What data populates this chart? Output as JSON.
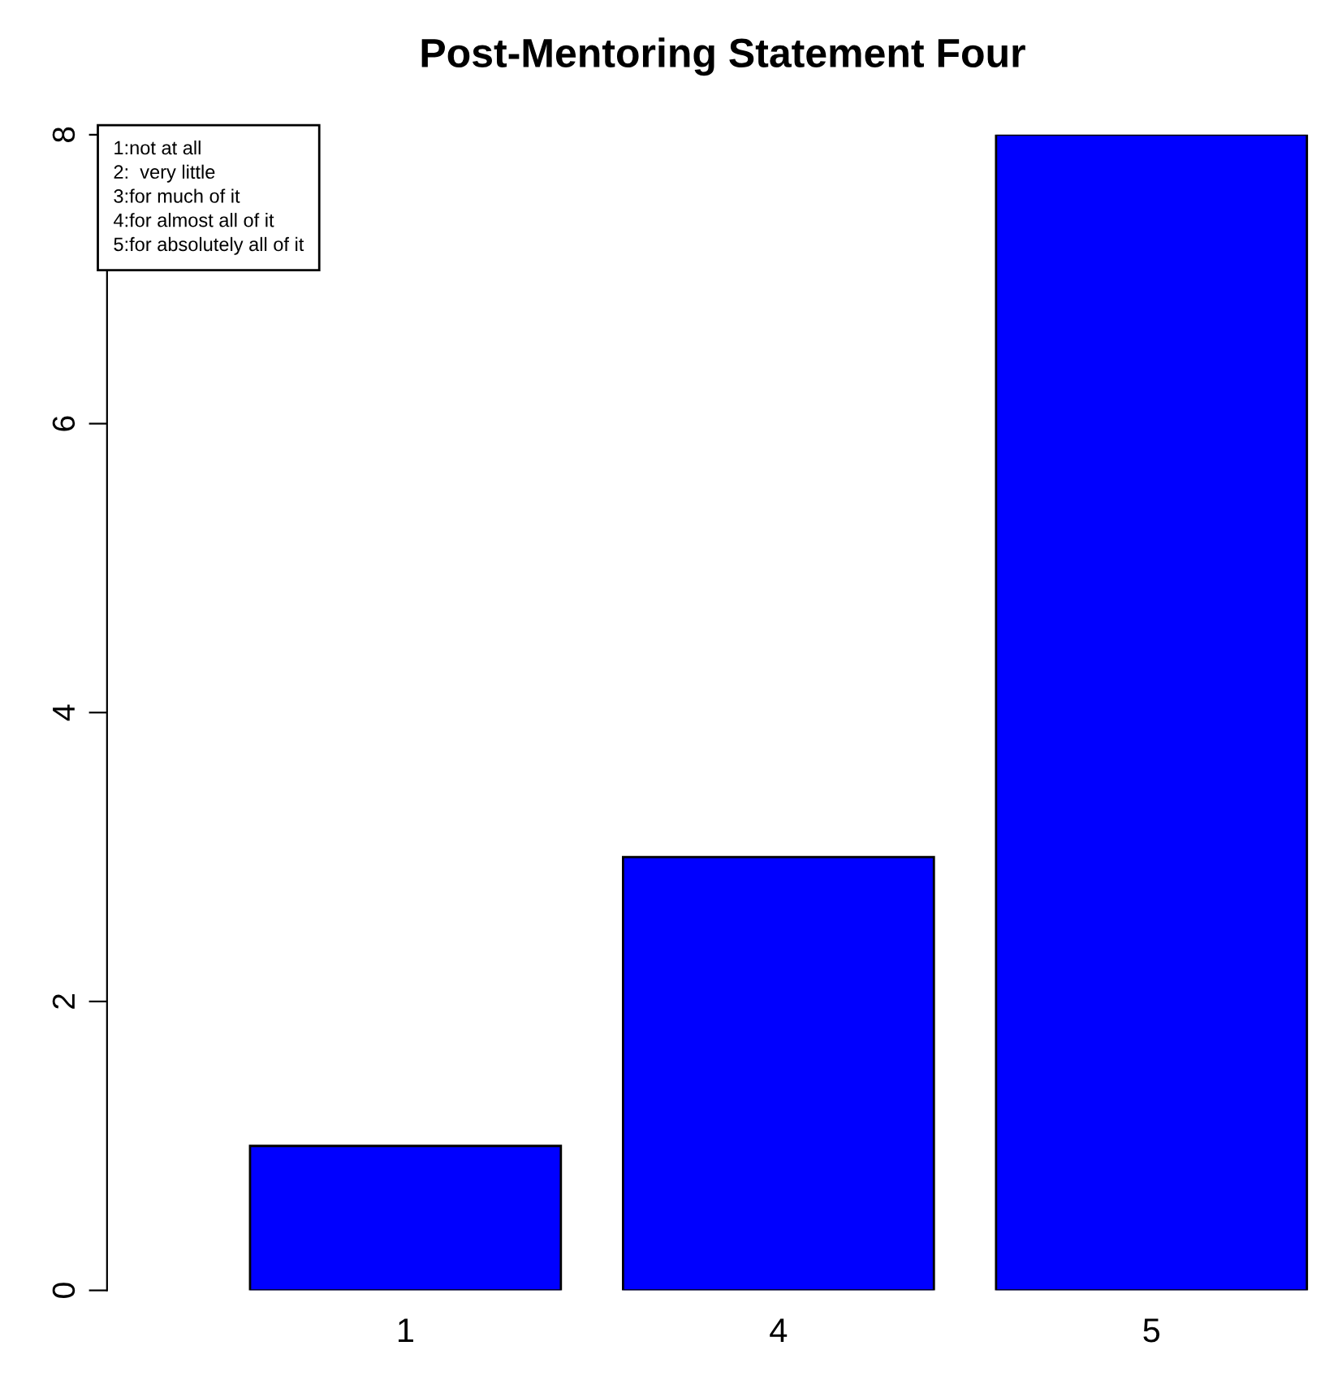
{
  "chart_data": {
    "type": "bar",
    "title": "Post-Mentoring Statement Four",
    "categories": [
      "1",
      "4",
      "5"
    ],
    "values": [
      1,
      3,
      8
    ],
    "color": "#0000ff",
    "ylim": [
      0,
      8
    ],
    "yticks": [
      0,
      2,
      4,
      6,
      8
    ],
    "grid": false,
    "annotations": [
      "1:not at all",
      "2:  very little",
      "3:for much of it",
      "4:for almost all of it",
      "5:for absolutely all of it"
    ]
  }
}
